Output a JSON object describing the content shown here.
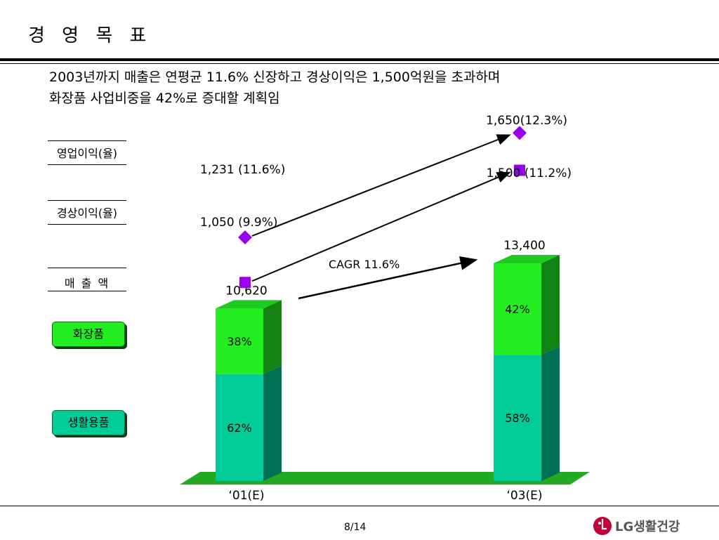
{
  "title": "경 영 목 표",
  "subtitle": {
    "line1": "2003년까지 매출은 연평균 11.6% 신장하고 경상이익은 1,500억원을 초과하며",
    "line2": "화장품 사업비중을 42%로 증대할 계획임"
  },
  "legend": {
    "operating_profit": "영업이익(율)",
    "ordinary_profit": "경상이익(율)",
    "sales": "매 출 액",
    "cosmetics_button": "화장품",
    "household_button": "생활용품"
  },
  "colors": {
    "cosmetics": "#22ee22",
    "household": "#00cc99",
    "marker": "#9900ee",
    "floor": "#22aa22"
  },
  "chart_data": {
    "type": "bar",
    "categories": [
      "‘01(E)",
      "‘03(E)"
    ],
    "totals": [
      10620,
      13400
    ],
    "total_labels": [
      "10,620",
      "13,400"
    ],
    "series": [
      {
        "name": "생활용품",
        "values": [
          62,
          58
        ],
        "labels": [
          "62%",
          "58%"
        ]
      },
      {
        "name": "화장품",
        "values": [
          38,
          42
        ],
        "labels": [
          "38%",
          "42%"
        ]
      }
    ],
    "cagr_label": "CAGR 11.6%",
    "profit_lines": [
      {
        "name": "영업이익(율)",
        "marker": "diamond",
        "values": [
          1231,
          1650
        ],
        "rates": [
          11.6,
          12.3
        ],
        "labels": [
          "1,231 (11.6%)",
          "1,650(12.3%)"
        ]
      },
      {
        "name": "경상이익(율)",
        "marker": "square",
        "values": [
          1050,
          1500
        ],
        "rates": [
          9.9,
          11.2
        ],
        "labels": [
          "1,050 (9.9%)",
          "1,500 (11.2%)"
        ]
      }
    ]
  },
  "footer": {
    "page": "8/14",
    "logo_text": "LG생활건강"
  }
}
